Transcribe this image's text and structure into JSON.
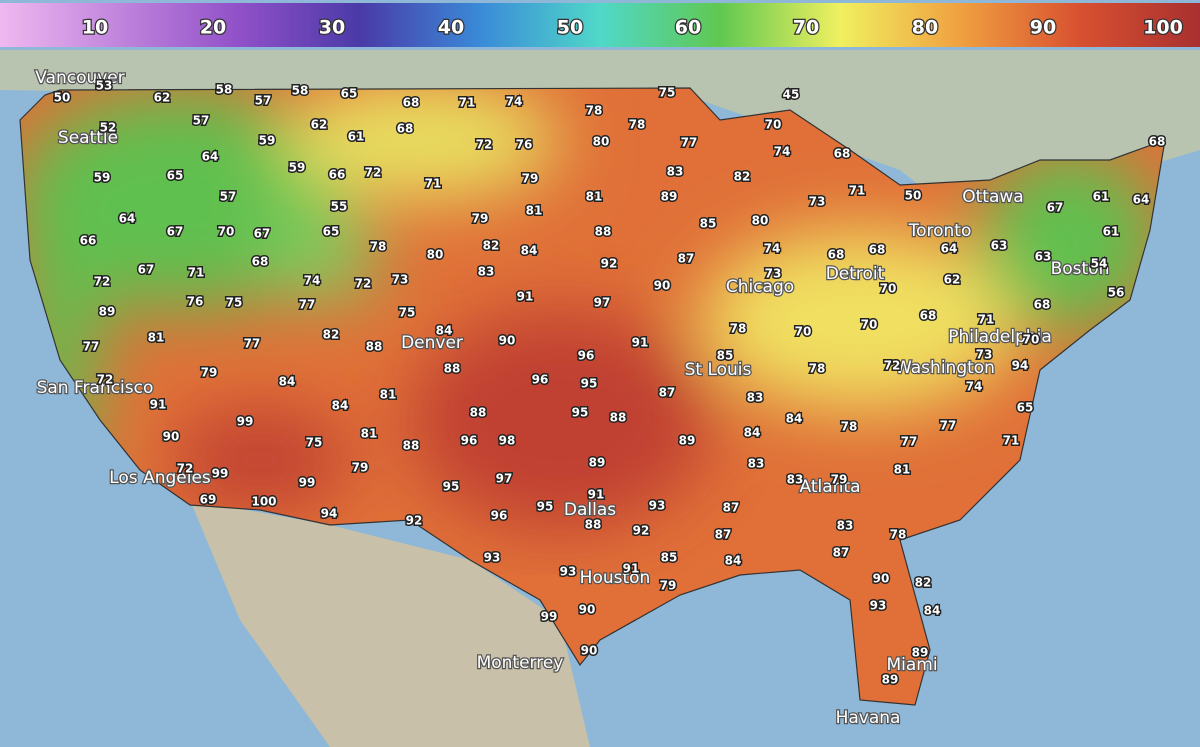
{
  "legend": {
    "ticks": [
      10,
      20,
      30,
      40,
      50,
      60,
      70,
      80,
      90,
      100
    ]
  },
  "cities": [
    "Vancouver",
    "Seattle",
    "San Francisco",
    "Los Angeles",
    "Denver",
    "St Louis",
    "Chicago",
    "Detroit",
    "Toronto",
    "Ottawa",
    "Boston",
    "Philadelphia",
    "Washington",
    "Atlanta",
    "Dallas",
    "Houston",
    "Monterrey",
    "Miami",
    "Havana"
  ],
  "stations": [
    50,
    53,
    62,
    58,
    57,
    58,
    65,
    68,
    71,
    74,
    78,
    75,
    45,
    52,
    57,
    62,
    61,
    68,
    72,
    76,
    80,
    78,
    70,
    77,
    74,
    68,
    68,
    59,
    65,
    64,
    59,
    59,
    66,
    72,
    71,
    79,
    83,
    82,
    71,
    50,
    73,
    57,
    89,
    81,
    55,
    79,
    81,
    85,
    80,
    67,
    61,
    64,
    64,
    67,
    70,
    67,
    65,
    88,
    61,
    74,
    68,
    68,
    64,
    63,
    66,
    82,
    84,
    78,
    80,
    68,
    92,
    87,
    73,
    63,
    54,
    67,
    71,
    72,
    83,
    73,
    72,
    74,
    90,
    70,
    62,
    56,
    91,
    97,
    76,
    75,
    77,
    75,
    68,
    89,
    84,
    82,
    78,
    70,
    70,
    68,
    71,
    81,
    77,
    88,
    90,
    91,
    70,
    77,
    96,
    85,
    73,
    88,
    96,
    95,
    78,
    72,
    94,
    79,
    84,
    74,
    72,
    87,
    83,
    84,
    81,
    91,
    88,
    95,
    88,
    84,
    65,
    99,
    78,
    77,
    90,
    75,
    81,
    88,
    96,
    98,
    89,
    84,
    77,
    71,
    83,
    89,
    79,
    72,
    99,
    97,
    83,
    79,
    81,
    99,
    69,
    100,
    95,
    91,
    95,
    93,
    87,
    94,
    92,
    96,
    88,
    92,
    87,
    83,
    78,
    93,
    85,
    84,
    87,
    93,
    91,
    79,
    90,
    82,
    90,
    99,
    93,
    84,
    90,
    89,
    89
  ]
}
